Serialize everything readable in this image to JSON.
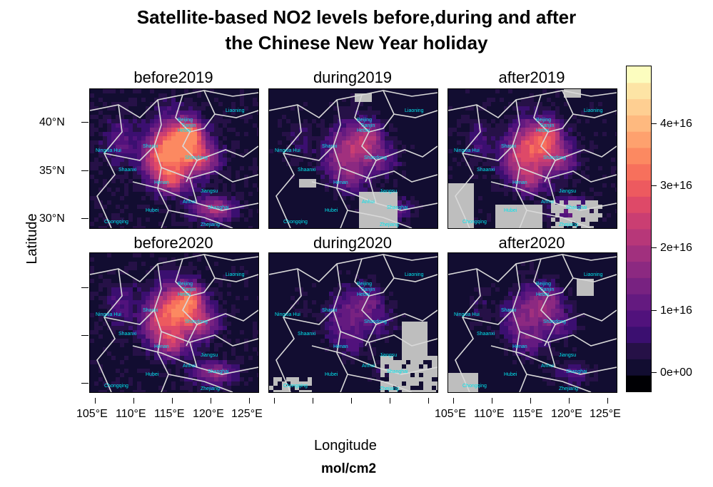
{
  "title": {
    "line1": "Satellite-based NO2 levels before,during and after",
    "line2": "the Chinese New Year holiday"
  },
  "panels": [
    {
      "title": "before2019",
      "intensity": 1.0,
      "nodata": "none"
    },
    {
      "title": "during2019",
      "intensity": 0.55,
      "nodata": "during2019"
    },
    {
      "title": "after2019",
      "intensity": 0.75,
      "nodata": "after2019"
    },
    {
      "title": "before2020",
      "intensity": 0.85,
      "nodata": "none"
    },
    {
      "title": "during2020",
      "intensity": 0.35,
      "nodata": "during2020"
    },
    {
      "title": "after2020",
      "intensity": 0.45,
      "nodata": "after2020"
    }
  ],
  "province_labels": [
    "Liaoning",
    "Beijing",
    "Tianjin",
    "Hebei",
    "Ningxia Hui",
    "Shanxi",
    "Shandong",
    "Shaanxi",
    "Henan",
    "Jiangsu",
    "Anhui",
    "Shanghai",
    "Hubei",
    "Chongqing",
    "Zhejiang"
  ],
  "axes": {
    "x_ticks": [
      "105°E",
      "110°E",
      "115°E",
      "120°E",
      "125°E"
    ],
    "y_ticks": [
      "40°N",
      "35°N",
      "30°N"
    ],
    "x_title": "Longitude",
    "y_title": "Latitude",
    "units": "mol/cm2"
  },
  "legend": {
    "labels": [
      "4e+16",
      "3e+16",
      "2e+16",
      "1e+16",
      "0e+00"
    ],
    "colors": [
      "#000004",
      "#120d31",
      "#261147",
      "#3b0f70",
      "#51127c",
      "#641a80",
      "#782281",
      "#8c2981",
      "#a1307e",
      "#b73779",
      "#ca3e72",
      "#de4968",
      "#ed5a5f",
      "#f7705c",
      "#fc8961",
      "#fea16e",
      "#feb97f",
      "#fecf92",
      "#fde4a5",
      "#fcfdbf"
    ]
  },
  "colors": {
    "nodata": "#bebebe",
    "boundaries": "#d9d9d9",
    "province_label": "#00e5ee"
  }
}
